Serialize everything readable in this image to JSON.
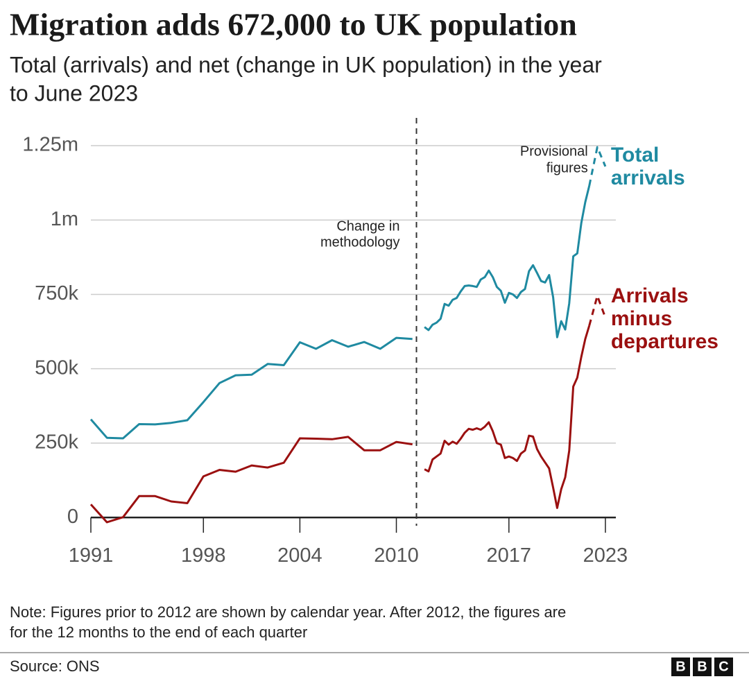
{
  "chart_data": {
    "type": "line",
    "title": "Migration adds 672,000 to UK population",
    "subtitle": [
      "Total (arrivals) and net (change in UK population) in the year",
      "to June 2023"
    ],
    "note": [
      "Note: Figures prior to 2012 are shown by calendar year. After 2012, the figures are",
      "for the 12 months to the end of each quarter"
    ],
    "source": "Source: ONS",
    "logo": [
      "B",
      "B",
      "C"
    ],
    "x": [
      1991,
      1992,
      1993,
      1994,
      1995,
      1996,
      1997,
      1998,
      1999,
      2000,
      2001,
      2002,
      2003,
      2004,
      2005,
      2006,
      2007,
      2008,
      2009,
      2010,
      2011,
      2011.75,
      2012,
      2012.25,
      2012.5,
      2012.75,
      2013,
      2013.25,
      2013.5,
      2013.75,
      2014,
      2014.25,
      2014.5,
      2014.75,
      2015,
      2015.25,
      2015.5,
      2015.75,
      2016,
      2016.25,
      2016.5,
      2016.75,
      2017,
      2017.25,
      2017.5,
      2017.75,
      2018,
      2018.25,
      2018.5,
      2018.75,
      2019,
      2019.25,
      2019.5,
      2019.75,
      2020,
      2020.25,
      2020.5,
      2020.75,
      2021,
      2021.25,
      2021.5,
      2021.75,
      2022,
      2022.5,
      2023
    ],
    "series": [
      {
        "name": "Total arrivals",
        "color": "#1f8aa1",
        "values": [
          330000,
          268000,
          266000,
          314000,
          313000,
          318000,
          327000,
          388000,
          452000,
          478000,
          480000,
          516000,
          512000,
          589000,
          567000,
          596000,
          574000,
          590000,
          567000,
          604000,
          600000,
          640000,
          630000,
          648000,
          655000,
          668000,
          718000,
          712000,
          732000,
          738000,
          760000,
          778000,
          780000,
          778000,
          775000,
          800000,
          808000,
          830000,
          808000,
          775000,
          762000,
          722000,
          755000,
          750000,
          738000,
          758000,
          768000,
          828000,
          848000,
          822000,
          795000,
          790000,
          815000,
          740000,
          606000,
          660000,
          632000,
          720000,
          878000,
          888000,
          990000,
          1060000,
          1115000,
          1245000,
          1180000
        ]
      },
      {
        "name": "Arrivals minus departures",
        "color": "#9b1010",
        "values": [
          44000,
          -16000,
          1000,
          72000,
          72000,
          54000,
          48000,
          138000,
          160000,
          154000,
          175000,
          168000,
          184000,
          266000,
          265000,
          263000,
          271000,
          226000,
          226000,
          254000,
          246000,
          162000,
          155000,
          195000,
          205000,
          215000,
          258000,
          245000,
          255000,
          248000,
          265000,
          285000,
          298000,
          295000,
          300000,
          295000,
          305000,
          320000,
          290000,
          250000,
          245000,
          200000,
          205000,
          200000,
          190000,
          215000,
          225000,
          275000,
          272000,
          230000,
          205000,
          185000,
          165000,
          100000,
          32000,
          95000,
          135000,
          225000,
          440000,
          470000,
          540000,
          600000,
          645000,
          745000,
          672000
        ]
      }
    ],
    "methodology_break": {
      "x": 2011.25,
      "label": [
        "Change in",
        "methodology"
      ]
    },
    "provisional": {
      "from": 2022,
      "label": [
        "Provisional",
        "figures"
      ]
    },
    "xlim": [
      1991,
      2023.65
    ],
    "ylim": [
      -30000,
      1250000
    ],
    "xticks": [
      1991,
      1998,
      2004,
      2010,
      2017,
      2023
    ],
    "yticks": [
      0,
      {
        "value": 250000,
        "label": "250k"
      },
      {
        "value": 500000,
        "label": "500k"
      },
      {
        "value": 750000,
        "label": "750k"
      },
      {
        "value": 1000000,
        "label": "1m"
      },
      {
        "value": 1250000,
        "label": "1.25m"
      }
    ],
    "grid": true
  }
}
